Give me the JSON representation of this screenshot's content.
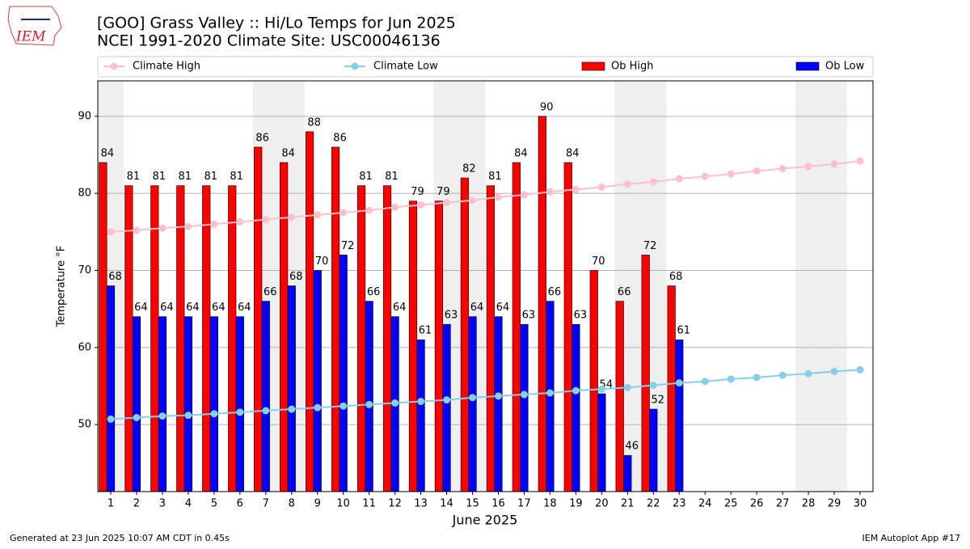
{
  "chart_data": {
    "type": "bar",
    "title": "[GOO] Grass Valley :: Hi/Lo Temps for Jun 2025",
    "subtitle": "NCEI 1991-2020 Climate Site: USC00046136",
    "logo_text": "IEM",
    "x_label": "June 2025",
    "y_label": "Temperature °F",
    "footer_left": "Generated at 23 Jun 2025 10:07 AM CDT in 0.45s",
    "footer_right": "IEM Autoplot App #17",
    "x": [
      1,
      2,
      3,
      4,
      5,
      6,
      7,
      8,
      9,
      10,
      11,
      12,
      13,
      14,
      15,
      16,
      17,
      18,
      19,
      20,
      21,
      22,
      23,
      24,
      25,
      26,
      27,
      28,
      29,
      30
    ],
    "xlim": [
      0.5,
      30.5
    ],
    "xticks": [
      1,
      2,
      3,
      4,
      5,
      6,
      7,
      8,
      9,
      10,
      11,
      12,
      13,
      14,
      15,
      16,
      17,
      18,
      19,
      20,
      21,
      22,
      23,
      24,
      25,
      26,
      27,
      28,
      29,
      30
    ],
    "ylim": [
      41.3,
      94.6
    ],
    "yticks": [
      50,
      60,
      70,
      80,
      90
    ],
    "grid": true,
    "shaded_days": [
      1,
      7,
      8,
      14,
      15,
      21,
      22,
      28,
      29
    ],
    "series": [
      {
        "name": "Climate High",
        "kind": "line",
        "color": "#ffc0cb",
        "values": [
          75.0,
          75.2,
          75.5,
          75.7,
          76.0,
          76.3,
          76.6,
          76.9,
          77.2,
          77.5,
          77.8,
          78.2,
          78.5,
          78.8,
          79.1,
          79.5,
          79.8,
          80.2,
          80.5,
          80.8,
          81.2,
          81.5,
          81.9,
          82.2,
          82.5,
          82.9,
          83.2,
          83.5,
          83.8,
          84.2
        ]
      },
      {
        "name": "Climate Low",
        "kind": "line",
        "color": "#87ceeb",
        "values": [
          50.7,
          50.9,
          51.1,
          51.2,
          51.4,
          51.6,
          51.8,
          52.0,
          52.2,
          52.4,
          52.6,
          52.8,
          53.0,
          53.2,
          53.5,
          53.7,
          53.9,
          54.1,
          54.4,
          54.6,
          54.8,
          55.1,
          55.4,
          55.6,
          55.9,
          56.1,
          56.4,
          56.6,
          56.9,
          57.1
        ]
      },
      {
        "name": "Ob High",
        "kind": "bar",
        "color": "#ff0000",
        "values": [
          84,
          81,
          81,
          81,
          81,
          81,
          86,
          84,
          88,
          86,
          81,
          81,
          79,
          79,
          82,
          81,
          84,
          90,
          84,
          70,
          66,
          72,
          68,
          null,
          null,
          null,
          null,
          null,
          null,
          null
        ]
      },
      {
        "name": "Ob Low",
        "kind": "bar",
        "color": "#0000ff",
        "values": [
          68,
          64,
          64,
          64,
          64,
          64,
          66,
          68,
          70,
          72,
          66,
          64,
          61,
          63,
          64,
          64,
          63,
          66,
          63,
          54,
          46,
          52,
          61,
          null,
          null,
          null,
          null,
          null,
          null,
          null
        ]
      }
    ]
  }
}
